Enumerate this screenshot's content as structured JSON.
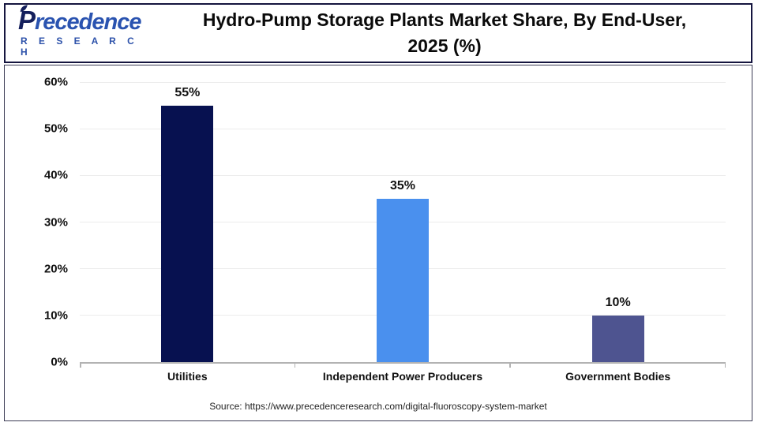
{
  "header": {
    "logo": {
      "brand": "Precedence",
      "subbrand": "R E S E A R C H"
    },
    "title_line1": "Hydro-Pump Storage Plants Market Share, By End-User,",
    "title_line2": "2025 (%)"
  },
  "chart_data": {
    "type": "bar",
    "title": "Hydro-Pump Storage Plants Market Share, By End-User, 2025 (%)",
    "categories": [
      "Utilities",
      "Independent Power Producers",
      "Government Bodies"
    ],
    "values": [
      55,
      35,
      10
    ],
    "value_labels": [
      "55%",
      "35%",
      "10%"
    ],
    "bar_colors": [
      "#071150",
      "#4a90ee",
      "#4e5490"
    ],
    "xlabel": "",
    "ylabel": "",
    "ylim": [
      0,
      60
    ],
    "yticks": [
      0,
      10,
      20,
      30,
      40,
      50,
      60
    ],
    "ytick_labels": [
      "0%",
      "10%",
      "20%",
      "30%",
      "40%",
      "50%",
      "60%"
    ],
    "grid": true,
    "legend": "none",
    "colors": {
      "grid": "#ececec",
      "axis": "#b3b3b3",
      "text": "#111111",
      "header_border": "#15153f",
      "panel_border": "#3c3c55",
      "logo_dark_blue": "#141f5c",
      "logo_blue": "#2a53b0"
    }
  },
  "footer": {
    "source": "Source: https://www.precedenceresearch.com/digital-fluoroscopy-system-market"
  }
}
